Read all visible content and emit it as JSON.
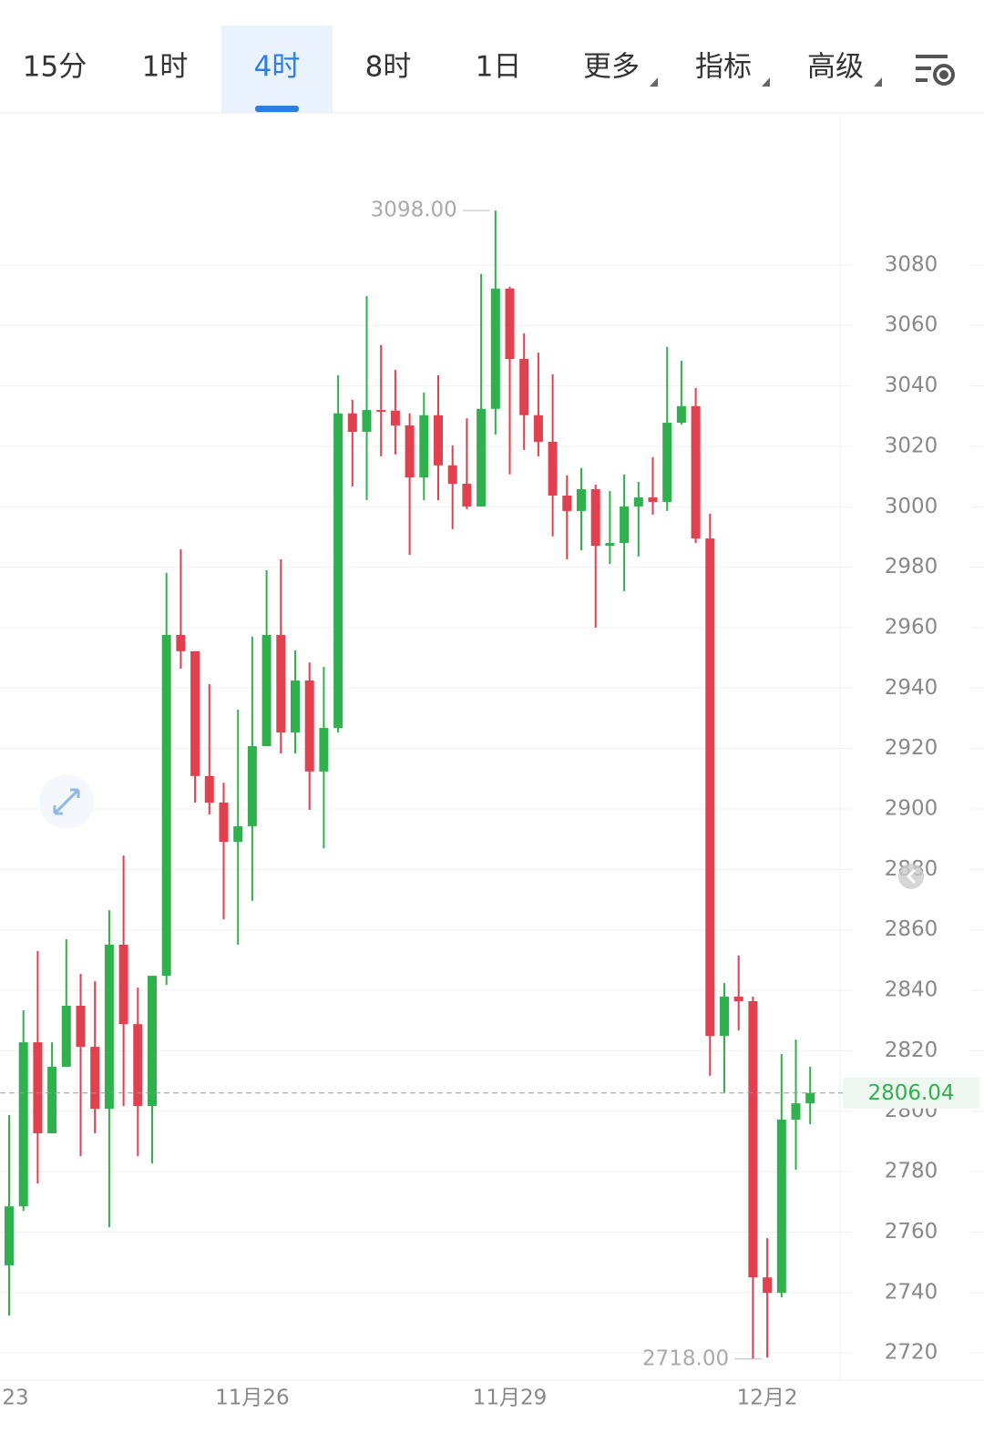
{
  "tabs": [
    "15分",
    "1时",
    "4时",
    "8时",
    "1日",
    "更多",
    "指标",
    "高级"
  ],
  "active_tab": 2,
  "chart_data": {
    "type": "candlestick",
    "categories": [
      "23",
      null,
      null,
      null,
      null,
      null,
      null,
      null,
      null,
      null,
      null,
      null,
      null,
      null,
      null,
      null,
      null,
      "11月26",
      null,
      null,
      null,
      null,
      null,
      null,
      null,
      null,
      null,
      null,
      null,
      null,
      null,
      null,
      null,
      null,
      null,
      "11月29",
      null,
      null,
      null,
      null,
      null,
      null,
      null,
      null,
      null,
      null,
      null,
      null,
      null,
      null,
      null,
      null,
      null,
      "12月2",
      null,
      null,
      null
    ],
    "open": [
      2749,
      2768.5,
      2822.8,
      2792.7,
      2814.7,
      2834.9,
      2821.3,
      2800.8,
      2855.1,
      2828.8,
      2801.7,
      2844.8,
      2957.6,
      2952.2,
      2910.9,
      2902.1,
      2889.1,
      2894.3,
      2920.8,
      2957.6,
      2925.3,
      2942.5,
      2912.4,
      2926.8,
      3030.9,
      3024.8,
      3032,
      3031.8,
      3026.9,
      3009.7,
      3030.3,
      3013.7,
      3007.6,
      3000.1,
      3032.4,
      3072.2,
      3048.9,
      3030.3,
      3021.5,
      3003.7,
      2998.6,
      3005.8,
      2987.1,
      2988,
      3000.1,
      3003.1,
      3001.6,
      3027.8,
      3033.3,
      2989.5,
      2824.9,
      2837.9,
      2836.4,
      2745,
      2739.9,
      2797.2,
      2802.6
    ],
    "high": [
      2798.7,
      2833.4,
      2853,
      2822.8,
      2856.9,
      2845.4,
      2843,
      2866.5,
      2884.6,
      2840.9,
      2844.8,
      2978.1,
      2985.9,
      2952.2,
      2941.3,
      2908.7,
      2932.9,
      2957,
      2979,
      2982.6,
      2952.5,
      2948.5,
      2947,
      3043.5,
      3035.4,
      3069.7,
      3053.5,
      3045.3,
      3030.9,
      3037.8,
      3043.5,
      3020.3,
      3029.3,
      3077,
      3098,
      3072.8,
      3057.4,
      3051,
      3043.8,
      3010.4,
      3012.8,
      3007.3,
      3005.2,
      3010.7,
      3008.2,
      3016.4,
      3052.9,
      3048.3,
      3039.3,
      2997.7,
      2842.4,
      2851.5,
      2837.9,
      2758,
      2818.9,
      2823.7,
      2814.7
    ],
    "low": [
      2732.4,
      2767,
      2776.1,
      2792.7,
      2814.7,
      2785.1,
      2792.7,
      2761.6,
      2801.7,
      2785.1,
      2782.7,
      2841.8,
      2946.4,
      2902.1,
      2898.2,
      2863.5,
      2855.1,
      2869.6,
      2920.8,
      2918.4,
      2918.4,
      2899.7,
      2887,
      2925.3,
      3006.7,
      3002.2,
      3016.7,
      3017.3,
      2984.1,
      3002.2,
      3002.2,
      2992.6,
      2999.2,
      3000.1,
      3023.9,
      3010.7,
      3018.8,
      3016.7,
      2990.2,
      2982.6,
      2985.6,
      2960,
      2981.1,
      2972.1,
      2983.5,
      2997.4,
      2998.6,
      3027.2,
      2988,
      2811.7,
      2806.2,
      2826.7,
      2718,
      2718.5,
      2738.4,
      2780.6,
      2795.7
    ],
    "close": [
      2768.5,
      2822.8,
      2792.7,
      2814.7,
      2834.9,
      2821.3,
      2800.8,
      2855.1,
      2828.8,
      2801.7,
      2844.8,
      2957.6,
      2952.2,
      2910.9,
      2902.1,
      2889.1,
      2894.3,
      2920.8,
      2957.6,
      2925.3,
      2942.5,
      2912.4,
      2926.8,
      3030.9,
      3024.8,
      3032,
      3031.8,
      3026.9,
      3009.7,
      3030.3,
      3013.7,
      3007.6,
      3000.1,
      3032.4,
      3072.2,
      3048.9,
      3030.3,
      3021.5,
      3003.7,
      2998.6,
      3005.8,
      2987.1,
      2988,
      3000.1,
      3003.1,
      3001.6,
      3027.8,
      3033.3,
      2989.5,
      2824.9,
      2837.9,
      2836.4,
      2745,
      2739.9,
      2797.2,
      2802.6,
      2806.04
    ],
    "up_color": "#2fb14e",
    "down_color": "#e23f4f",
    "ylim": [
      2711,
      3130
    ],
    "yticks": [
      2720,
      2740,
      2760,
      2780,
      2800,
      2820,
      2840,
      2860,
      2880,
      2900,
      2920,
      2940,
      2960,
      2980,
      3000,
      3020,
      3040,
      3060,
      3080
    ],
    "grid": true,
    "max_label": {
      "value": 3098,
      "label": "3098.00",
      "index": 34
    },
    "min_label": {
      "value": 2718,
      "label": "2718.00",
      "index": 53
    },
    "last_price": 2806.04
  }
}
